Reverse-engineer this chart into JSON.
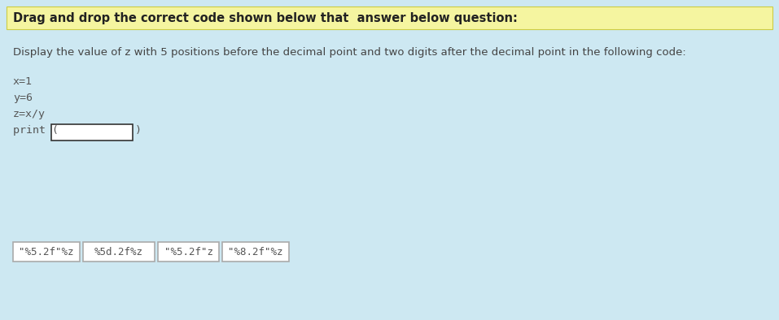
{
  "title": "Drag and drop the correct code shown below that  answer below question:",
  "question": "Display the value of z with 5 positions before the decimal point and two digits after the decimal point in the following code:",
  "code_lines": [
    "x=1",
    "y=6",
    "z=x/y"
  ],
  "print_label": "print (",
  "close_paren": ")",
  "options": [
    "\"%5.2f\"%z",
    "%5d.2f%z",
    "\"%5.2f\"z",
    "\"%8.2f\"%z"
  ],
  "bg_color": "#cde8f2",
  "title_highlight": "#f5f5a0",
  "title_border": "#cccc44",
  "option_border": "#aaaaaa",
  "option_bg": "#ffffff",
  "box_border": "#333333",
  "box_bg": "#ffffff",
  "text_color": "#444444",
  "code_color": "#555555",
  "title_color": "#222222",
  "font_size_title": 10.5,
  "font_size_question": 9.5,
  "font_size_code": 9.5,
  "font_size_options": 9,
  "fig_width": 9.57,
  "fig_height": 3.94,
  "dpi": 100
}
